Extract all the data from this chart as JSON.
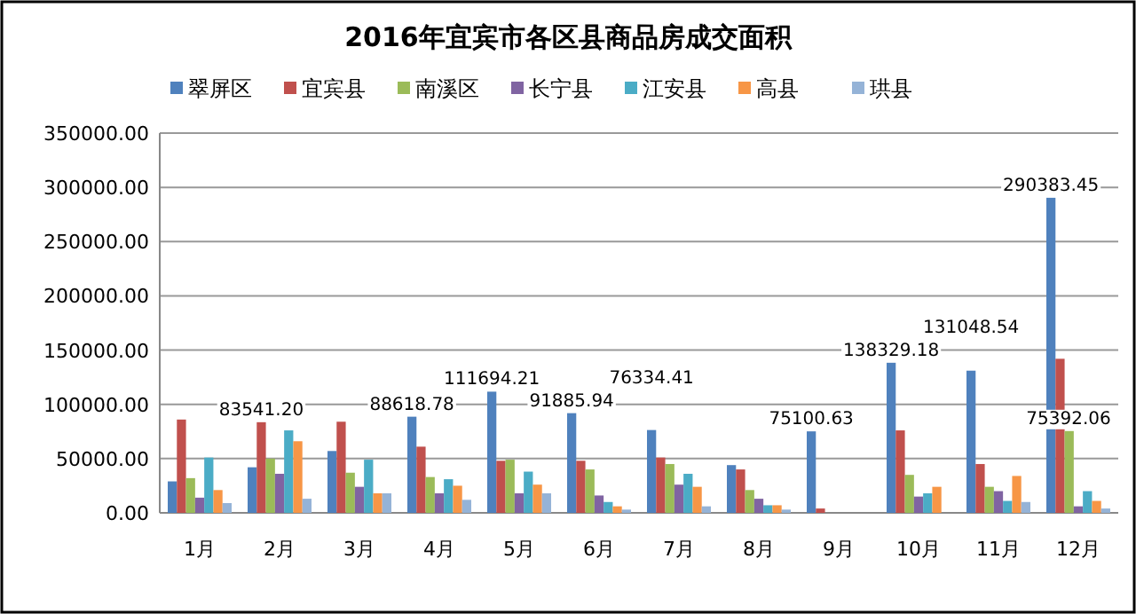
{
  "chart_data": {
    "type": "bar",
    "title": "2016年宜宾市各区县商品房成交面积",
    "categories": [
      "1月",
      "2月",
      "3月",
      "4月",
      "5月",
      "6月",
      "7月",
      "8月",
      "9月",
      "10月",
      "11月",
      "12月"
    ],
    "series": [
      {
        "name": "翠屏区",
        "color": "#4f81bd",
        "values": [
          29000,
          42000,
          57000,
          88618.78,
          111694.21,
          91885.94,
          76334.41,
          44000,
          75100.63,
          138329.18,
          131048.54,
          290383.45
        ],
        "value_labels": [
          null,
          null,
          null,
          "88618.78",
          "111694.21",
          "91885.94",
          "76334.41",
          null,
          "75100.63",
          "138329.18",
          "131048.54",
          "290383.45"
        ]
      },
      {
        "name": "宜宾县",
        "color": "#c0504d",
        "values": [
          86000,
          83541.2,
          84000,
          61000,
          48000,
          48000,
          51000,
          40000,
          4000,
          76000,
          45000,
          142000
        ],
        "value_labels": [
          null,
          "83541.20",
          null,
          null,
          null,
          null,
          null,
          null,
          null,
          null,
          null,
          null
        ]
      },
      {
        "name": "南溪区",
        "color": "#9bbb59",
        "values": [
          32000,
          50000,
          37000,
          33000,
          49000,
          40000,
          45000,
          21000,
          null,
          35000,
          24000,
          75392.06
        ],
        "value_labels": [
          null,
          null,
          null,
          null,
          null,
          null,
          null,
          null,
          null,
          null,
          null,
          "75392.06"
        ]
      },
      {
        "name": "长宁县",
        "color": "#8064a2",
        "values": [
          14000,
          36000,
          24000,
          18000,
          18000,
          16000,
          26000,
          13000,
          null,
          15000,
          20000,
          6000
        ]
      },
      {
        "name": "江安县",
        "color": "#4bacc6",
        "values": [
          51000,
          76000,
          49000,
          31000,
          38000,
          10000,
          36000,
          7000,
          null,
          18000,
          11000,
          20000
        ]
      },
      {
        "name": "高县",
        "color": "#f79646",
        "values": [
          21000,
          66000,
          18000,
          25000,
          26000,
          6000,
          24000,
          7000,
          null,
          24000,
          34000,
          11000
        ]
      },
      {
        "name": "珙县",
        "color": "#95b3d7",
        "values": [
          9000,
          13000,
          18000,
          12000,
          18000,
          3000,
          6000,
          3000,
          null,
          null,
          10000,
          4000
        ]
      }
    ],
    "ylim": [
      0,
      350000
    ],
    "yticks": [
      {
        "value": 0,
        "label": "0.00"
      },
      {
        "value": 50000,
        "label": "50000.00"
      },
      {
        "value": 100000,
        "label": "100000.00"
      },
      {
        "value": 150000,
        "label": "150000.00"
      },
      {
        "value": 200000,
        "label": "200000.00"
      },
      {
        "value": 250000,
        "label": "250000.00"
      },
      {
        "value": 300000,
        "label": "300000.00"
      },
      {
        "value": 350000,
        "label": "350000.00"
      }
    ],
    "grid": "y",
    "legend": "top"
  }
}
